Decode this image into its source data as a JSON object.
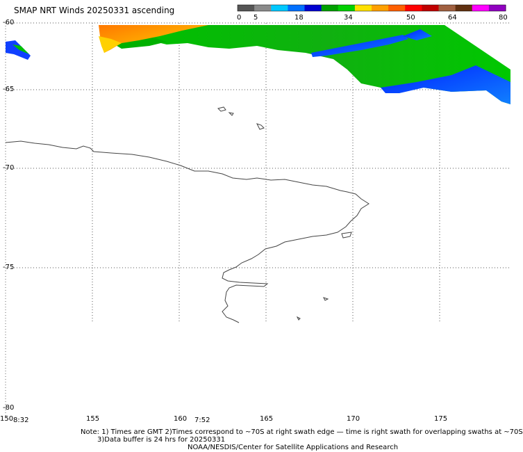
{
  "title": "SMAP NRT Winds 20250331 ascending",
  "colorbar": {
    "ticks": [
      "0",
      "5",
      "18",
      "34",
      "50",
      "64",
      "80"
    ],
    "colors": [
      "#555555",
      "#8a8a8a",
      "#00c8ff",
      "#0070ff",
      "#0000d0",
      "#00a000",
      "#00d000",
      "#ffe000",
      "#ffa000",
      "#ff6000",
      "#ff0000",
      "#c00000",
      "#a06040",
      "#603010",
      "#ff00ff",
      "#9000c0"
    ]
  },
  "lat_labels": [
    "-60",
    "-65",
    "-70",
    "-75",
    "-80"
  ],
  "lon_labels": [
    "150",
    "155",
    "160",
    "165",
    "170",
    "175"
  ],
  "times": [
    "8:32",
    "7:52"
  ],
  "notes": {
    "line1": "Note: 1) Times are GMT 2)Times correspond to ~70S at right swath edge — time is right swath for overlapping swaths at ~70S",
    "line2": "3)Data buffer is 24 hrs for 20250331",
    "line3": "NOAA/NESDIS/Center for Satellite Applications and Research"
  },
  "colors": {
    "land_outline": "#444444",
    "grid": "#666666",
    "wind_green": "#00c000",
    "wind_blue": "#0030ff",
    "wind_orange": "#ff8c00"
  }
}
